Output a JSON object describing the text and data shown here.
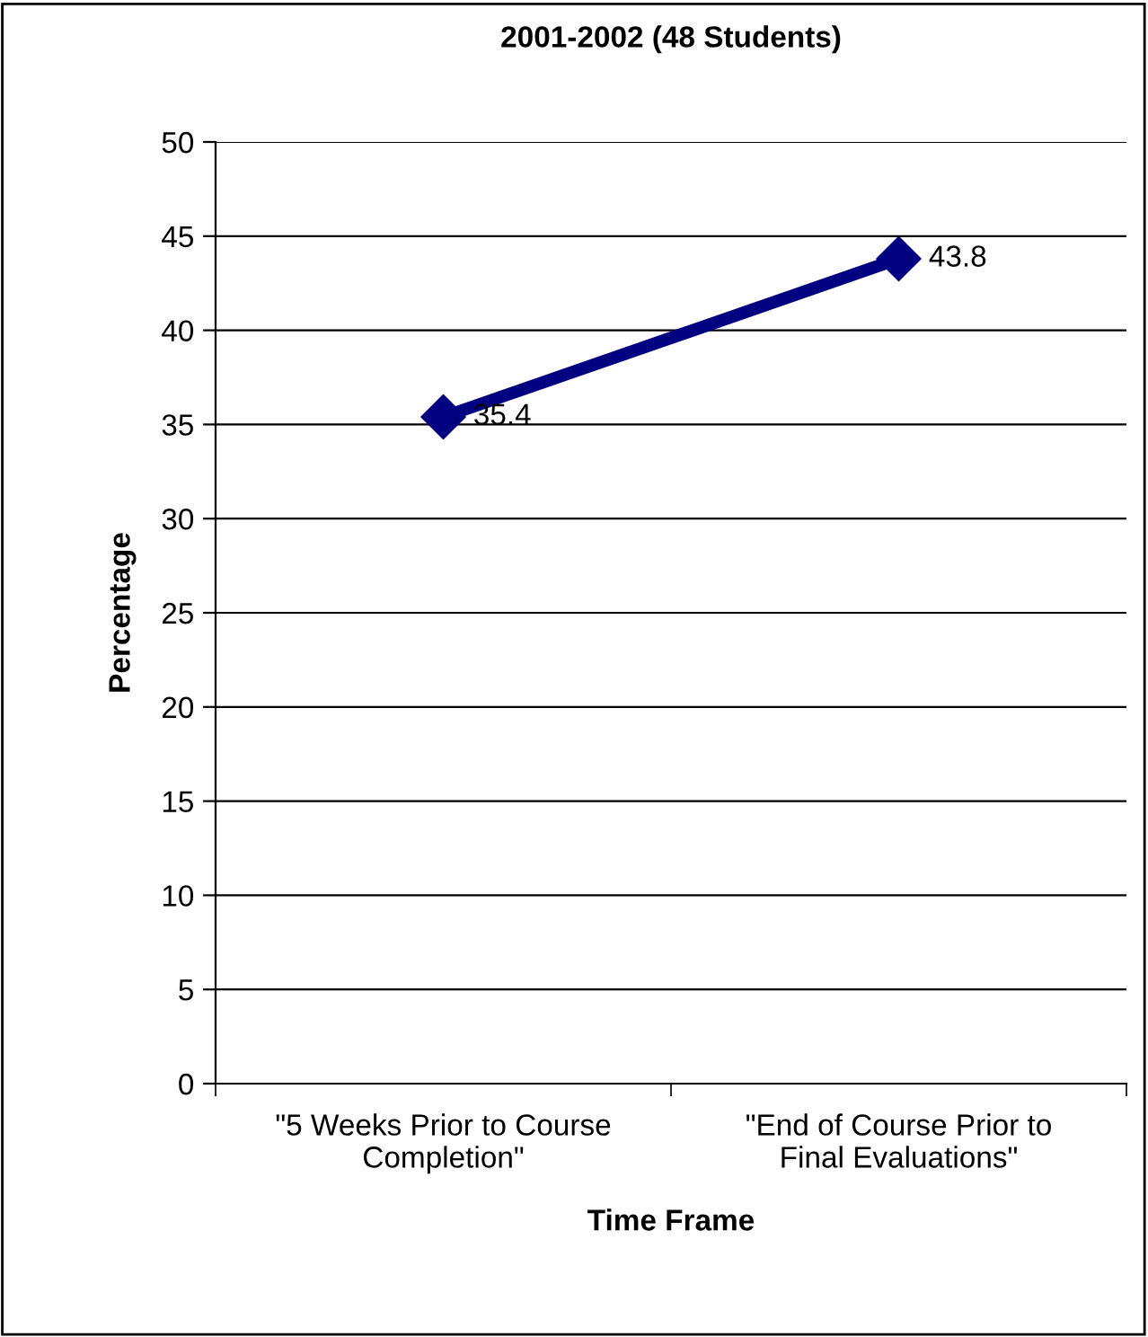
{
  "chart_data": {
    "type": "line",
    "title": "2001-2002 (48 Students)",
    "xlabel": "Time Frame",
    "ylabel": "Percentage",
    "categories": [
      "\"5 Weeks Prior to Course\nCompletion\"",
      "\"End of Course Prior to\nFinal Evaluations\""
    ],
    "series": [
      {
        "color": "#000080",
        "values": [
          35.4,
          43.8
        ]
      }
    ],
    "ylim": [
      0,
      50
    ],
    "yticks": [
      0,
      5,
      10,
      15,
      20,
      25,
      30,
      35,
      40,
      45,
      50
    ],
    "grid": "y",
    "marker": "diamond",
    "line_style": "solid",
    "data_labels": true,
    "legend": false
  }
}
